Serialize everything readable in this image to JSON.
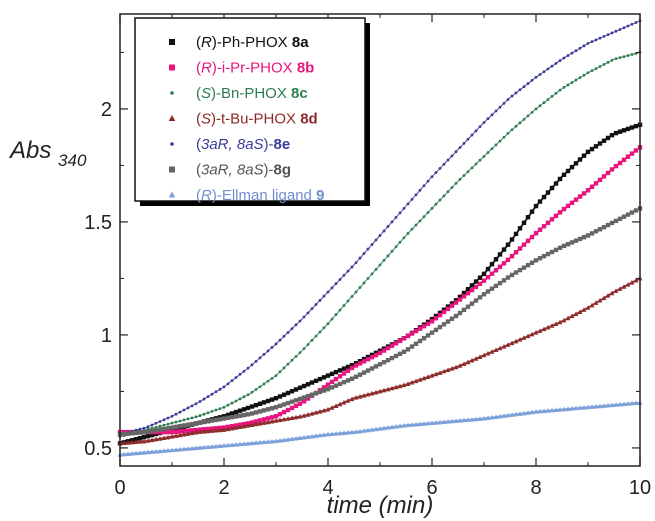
{
  "chart_data": {
    "type": "line",
    "title": "",
    "xlabel": "time (min)",
    "ylabel_main": "Abs",
    "ylabel_sub": "340",
    "xlim": [
      0,
      10
    ],
    "ylim": [
      0.42,
      2.42
    ],
    "x_ticks": [
      0,
      2,
      4,
      6,
      8,
      10
    ],
    "x_tick_labels": [
      "0",
      "2",
      "4",
      "6",
      "8",
      "10"
    ],
    "y_ticks": [
      0.5,
      1,
      1.5,
      2
    ],
    "y_tick_labels": [
      "0.5",
      "1",
      "1.5",
      "2"
    ],
    "grid": false,
    "legend_position": "top-left",
    "x": [
      0,
      0.5,
      1,
      1.5,
      2,
      2.5,
      3,
      3.5,
      4,
      4.5,
      5,
      5.5,
      6,
      6.5,
      7,
      7.5,
      8,
      8.5,
      9,
      9.5,
      10
    ],
    "series": [
      {
        "legend_parts": [
          {
            "t": "(",
            "s": ""
          },
          {
            "t": "R",
            "s": "it"
          },
          {
            "t": ")-Ph-PHOX ",
            "s": ""
          },
          {
            "t": "8a",
            "s": "bold"
          }
        ],
        "color": "#111111",
        "label_color": "#111111",
        "marker": "square",
        "values": [
          0.52,
          0.55,
          0.58,
          0.61,
          0.64,
          0.68,
          0.72,
          0.77,
          0.82,
          0.87,
          0.93,
          0.99,
          1.07,
          1.16,
          1.27,
          1.41,
          1.57,
          1.7,
          1.81,
          1.89,
          1.93
        ]
      },
      {
        "legend_parts": [
          {
            "t": "(",
            "s": ""
          },
          {
            "t": "R",
            "s": "it"
          },
          {
            "t": ")-i-Pr-PHOX ",
            "s": ""
          },
          {
            "t": "8b",
            "s": "bold"
          }
        ],
        "color": "#e8157f",
        "label_color": "#e8157f",
        "marker": "square",
        "values": [
          0.57,
          0.57,
          0.57,
          0.58,
          0.59,
          0.61,
          0.64,
          0.7,
          0.78,
          0.86,
          0.92,
          0.99,
          1.06,
          1.15,
          1.24,
          1.34,
          1.45,
          1.55,
          1.64,
          1.74,
          1.83
        ]
      },
      {
        "legend_parts": [
          {
            "t": "(",
            "s": ""
          },
          {
            "t": "S",
            "s": "it"
          },
          {
            "t": ")-Bn-PHOX ",
            "s": ""
          },
          {
            "t": "8c",
            "s": "bold"
          }
        ],
        "color": "#2e7d4f",
        "label_color": "#2e7d4f",
        "marker": "dot",
        "values": [
          0.55,
          0.58,
          0.61,
          0.64,
          0.68,
          0.74,
          0.82,
          0.93,
          1.05,
          1.18,
          1.31,
          1.44,
          1.56,
          1.68,
          1.79,
          1.9,
          2.0,
          2.09,
          2.16,
          2.22,
          2.25
        ]
      },
      {
        "legend_parts": [
          {
            "t": "(",
            "s": ""
          },
          {
            "t": "S",
            "s": "it"
          },
          {
            "t": ")-t-Bu-PHOX ",
            "s": ""
          },
          {
            "t": "8d",
            "s": "bold"
          }
        ],
        "color": "#8c2a2a",
        "label_color": "#8c2a2a",
        "marker": "triangle",
        "values": [
          0.52,
          0.53,
          0.55,
          0.57,
          0.58,
          0.6,
          0.62,
          0.64,
          0.67,
          0.72,
          0.75,
          0.78,
          0.82,
          0.86,
          0.91,
          0.96,
          1.01,
          1.06,
          1.12,
          1.19,
          1.25
        ]
      },
      {
        "legend_parts": [
          {
            "t": "(",
            "s": ""
          },
          {
            "t": "3aR, 8aS",
            "s": "it"
          },
          {
            "t": ")-",
            "s": ""
          },
          {
            "t": "8e",
            "s": "bold"
          }
        ],
        "color": "#3a3a9a",
        "label_color": "#3a3a9a",
        "marker": "dot",
        "values": [
          0.56,
          0.59,
          0.64,
          0.7,
          0.77,
          0.86,
          0.96,
          1.07,
          1.19,
          1.31,
          1.44,
          1.57,
          1.7,
          1.82,
          1.94,
          2.05,
          2.14,
          2.22,
          2.29,
          2.34,
          2.39
        ]
      },
      {
        "legend_parts": [
          {
            "t": "(",
            "s": ""
          },
          {
            "t": "3aR, 8aS",
            "s": "it"
          },
          {
            "t": ")-",
            "s": ""
          },
          {
            "t": "8g",
            "s": "bold"
          }
        ],
        "color": "#666666",
        "label_color": "#555555",
        "marker": "square",
        "values": [
          0.56,
          0.57,
          0.59,
          0.61,
          0.63,
          0.65,
          0.68,
          0.72,
          0.76,
          0.81,
          0.87,
          0.93,
          1.01,
          1.09,
          1.18,
          1.26,
          1.33,
          1.39,
          1.44,
          1.5,
          1.56
        ]
      },
      {
        "legend_parts": [
          {
            "t": "(",
            "s": ""
          },
          {
            "t": "R",
            "s": "it"
          },
          {
            "t": ")-Ellman ligand ",
            "s": ""
          },
          {
            "t": "9",
            "s": "bold"
          }
        ],
        "color": "#7aa0d8",
        "label_color": "#6f8fd0",
        "marker": "triangle",
        "values": [
          0.47,
          0.48,
          0.49,
          0.5,
          0.51,
          0.52,
          0.53,
          0.545,
          0.56,
          0.57,
          0.585,
          0.6,
          0.61,
          0.62,
          0.63,
          0.645,
          0.66,
          0.67,
          0.68,
          0.69,
          0.7
        ]
      }
    ]
  }
}
